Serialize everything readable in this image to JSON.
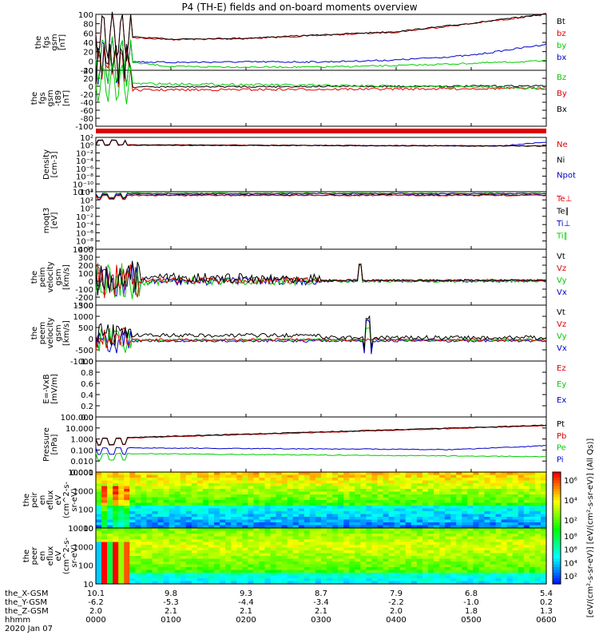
{
  "title": "P4 (TH-E) fields and on-board moments overview",
  "date": "2020 Jan 07",
  "colors": {
    "black": "#000000",
    "red": "#dd0000",
    "green": "#00cc00",
    "blue": "#0000cc"
  },
  "chart_data": {
    "type": "line",
    "x_row_labels": [
      "the_X-GSM",
      "the_Y-GSM",
      "the_Z-GSM",
      "hhmm"
    ],
    "x_rows": [
      [
        "10.1",
        "9.8",
        "9.3",
        "8.7",
        "7.9",
        "6.8",
        "5.4"
      ],
      [
        "-6.2",
        "-5.3",
        "-4.4",
        "-3.4",
        "-2.2",
        "-1.0",
        "0.2"
      ],
      [
        "2.0",
        "2.1",
        "2.1",
        "2.1",
        "2.0",
        "1.8",
        "1.3"
      ],
      [
        "0000",
        "0100",
        "0200",
        "0300",
        "0400",
        "0500",
        "0600"
      ]
    ],
    "panels": [
      {
        "id": "fgs_gsm",
        "ylabel": [
          "the",
          "fgs",
          "gsm",
          "[nT]"
        ],
        "ticks": [
          "100",
          "80",
          "60",
          "40",
          "20",
          "0",
          "-20"
        ],
        "legend": [
          {
            "text": "Bt",
            "color": "black"
          },
          {
            "text": "bz",
            "color": "red"
          },
          {
            "text": "by",
            "color": "green"
          },
          {
            "text": "bx",
            "color": "blue"
          }
        ]
      },
      {
        "id": "fgs_gsm_dipole",
        "ylabel": [
          "the",
          "fgs",
          "gsm",
          "-t89",
          "[nT]"
        ],
        "ticks": [
          "40",
          "20",
          "0",
          "-20",
          "-40",
          "-60",
          "-80",
          "-100"
        ],
        "legend": [
          {
            "text": "Bz",
            "color": "green"
          },
          {
            "text": "By",
            "color": "red"
          },
          {
            "text": "Bx",
            "color": "black"
          }
        ]
      },
      {
        "id": "density",
        "ylabel": [
          "Density",
          "[cm-3]"
        ],
        "ticks": [
          "10²",
          "10⁰",
          "10⁻²",
          "10⁻⁴",
          "10⁻⁶",
          "10⁻⁸",
          "10⁻¹⁰",
          "10⁻¹²"
        ],
        "legend": [
          {
            "text": "Ne",
            "color": "red"
          },
          {
            "text": "Ni",
            "color": "black"
          },
          {
            "text": "Npot",
            "color": "blue"
          }
        ]
      },
      {
        "id": "temperature",
        "ylabel": [
          "moqt3",
          "[eV]"
        ],
        "ticks": [
          "10⁴",
          "10²",
          "10⁰",
          "10⁻²",
          "10⁻⁴",
          "10⁻⁶",
          "10⁻⁸",
          "10⁻¹⁰"
        ],
        "legend": [
          {
            "text": "Te⊥",
            "color": "red"
          },
          {
            "text": "Te∥",
            "color": "black"
          },
          {
            "text": "Ti⊥",
            "color": "blue"
          },
          {
            "text": "Ti∥",
            "color": "green"
          }
        ]
      },
      {
        "id": "peim_velocity",
        "ylabel": [
          "the",
          "peim",
          "velocity",
          "gsm",
          "[km/s]"
        ],
        "ticks": [
          "400",
          "300",
          "200",
          "100",
          "0",
          "-100",
          "-200",
          "-300"
        ],
        "legend": [
          {
            "text": "Vt",
            "color": "black"
          },
          {
            "text": "Vz",
            "color": "red"
          },
          {
            "text": "Vy",
            "color": "green"
          },
          {
            "text": "Vx",
            "color": "blue"
          }
        ]
      },
      {
        "id": "peem_velocity",
        "ylabel": [
          "the",
          "peem",
          "velocity",
          "gsm",
          "[km/s]"
        ],
        "ticks": [
          "1500",
          "1000",
          "500",
          "0",
          "-500",
          "-1000"
        ],
        "legend": [
          {
            "text": "Vt",
            "color": "black"
          },
          {
            "text": "Vz",
            "color": "red"
          },
          {
            "text": "Vy",
            "color": "green"
          },
          {
            "text": "Vx",
            "color": "blue"
          }
        ]
      },
      {
        "id": "e_field",
        "ylabel": [
          "E=-VxB",
          "[mV/m]"
        ],
        "ticks": [
          "1.0",
          "0.8",
          "0.6",
          "0.4",
          "0.2",
          "0.0"
        ],
        "legend": [
          {
            "text": "Ez",
            "color": "red"
          },
          {
            "text": "Ey",
            "color": "green"
          },
          {
            "text": "Ex",
            "color": "blue"
          }
        ]
      },
      {
        "id": "pressure",
        "ylabel": [
          "Pressure",
          "[nPa]"
        ],
        "ticks": [
          "100.000",
          "10.000",
          "1.000",
          "0.100",
          "0.010",
          "0.001"
        ],
        "legend": [
          {
            "text": "Pt",
            "color": "black"
          },
          {
            "text": "Pb",
            "color": "red"
          },
          {
            "text": "Pe",
            "color": "green"
          },
          {
            "text": "Pi",
            "color": "blue"
          }
        ]
      },
      {
        "id": "peir_eflux",
        "ylabel": [
          "the",
          "peir",
          "en",
          "eflux",
          "eV",
          "(cm^2-s-",
          "sr-eV)"
        ],
        "ticks": [
          "10000",
          "1000",
          "100",
          "10"
        ],
        "cbar_ticks": [
          "10⁶",
          "10⁴",
          "10²"
        ]
      },
      {
        "id": "peer_eflux",
        "ylabel": [
          "the",
          "peer",
          "en",
          "eflux",
          "eV",
          "(cm^2-s-",
          "sr-eV)"
        ],
        "ticks": [
          "10000",
          "1000",
          "100",
          "10"
        ],
        "cbar_ticks": [
          "10⁸",
          "10⁶",
          "10⁴",
          "10²"
        ]
      }
    ],
    "colorbar_label": "[eV/(cm²-s-sr-eV)] [eV/(cm²-s-sr-eV)] (All Qs)]",
    "series_summary": {
      "bt_trend_nT": [
        55,
        46,
        48,
        55,
        62,
        80,
        100
      ],
      "by_trend_nT": [
        5,
        -12,
        -13,
        -13,
        -10,
        -5,
        0
      ],
      "bx_trend_nT": [
        0,
        -3,
        -2,
        -2,
        2,
        12,
        36
      ]
    }
  }
}
